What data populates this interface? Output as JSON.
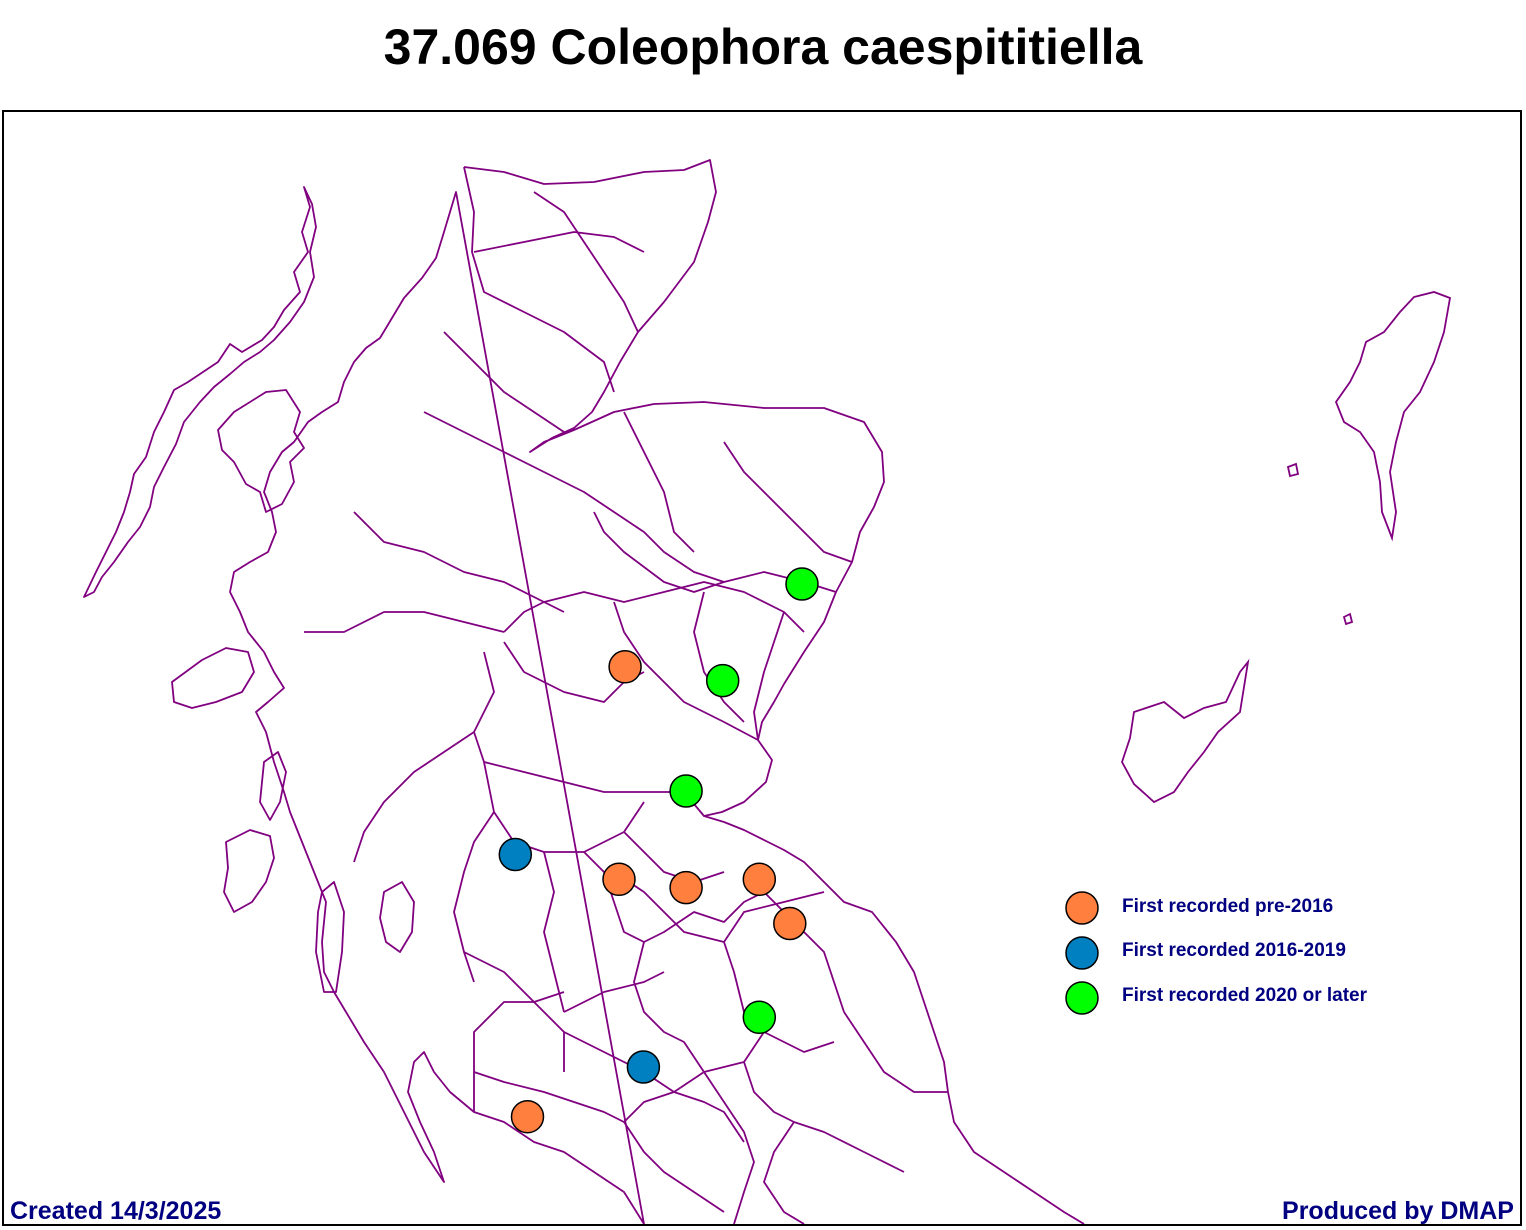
{
  "title": "37.069 Coleophora caespititiella",
  "colors": {
    "boundary": "#800080",
    "pre2016": "#ff7f3f",
    "y2016_2019": "#0080c0",
    "y2020": "#00ff00",
    "text": "#000080"
  },
  "legend": {
    "items": [
      {
        "label": "First recorded pre-2016",
        "category": "pre2016"
      },
      {
        "label": "First recorded 2016-2019",
        "category": "y2016_2019"
      },
      {
        "label": "First recorded 2020 or later",
        "category": "y2020"
      }
    ]
  },
  "records": [
    {
      "category": "y2020",
      "lon": -2.15,
      "lat": 56.95
    },
    {
      "category": "pre2016",
      "lon": -3.6,
      "lat": 56.65
    },
    {
      "category": "y2020",
      "lon": -2.8,
      "lat": 56.6
    },
    {
      "category": "y2020",
      "lon": -3.1,
      "lat": 56.2
    },
    {
      "category": "y2016_2019",
      "lon": -4.5,
      "lat": 55.97
    },
    {
      "category": "pre2016",
      "lon": -3.65,
      "lat": 55.88
    },
    {
      "category": "pre2016",
      "lon": -3.1,
      "lat": 55.85
    },
    {
      "category": "pre2016",
      "lon": -2.5,
      "lat": 55.88
    },
    {
      "category": "pre2016",
      "lon": -2.25,
      "lat": 55.72
    },
    {
      "category": "y2020",
      "lon": -2.5,
      "lat": 55.38
    },
    {
      "category": "y2016_2019",
      "lon": -3.45,
      "lat": 55.2
    },
    {
      "category": "pre2016",
      "lon": -4.4,
      "lat": 55.02
    }
  ],
  "footer": {
    "created": "Created 14/3/2025",
    "produced": "Produced by DMAP"
  }
}
